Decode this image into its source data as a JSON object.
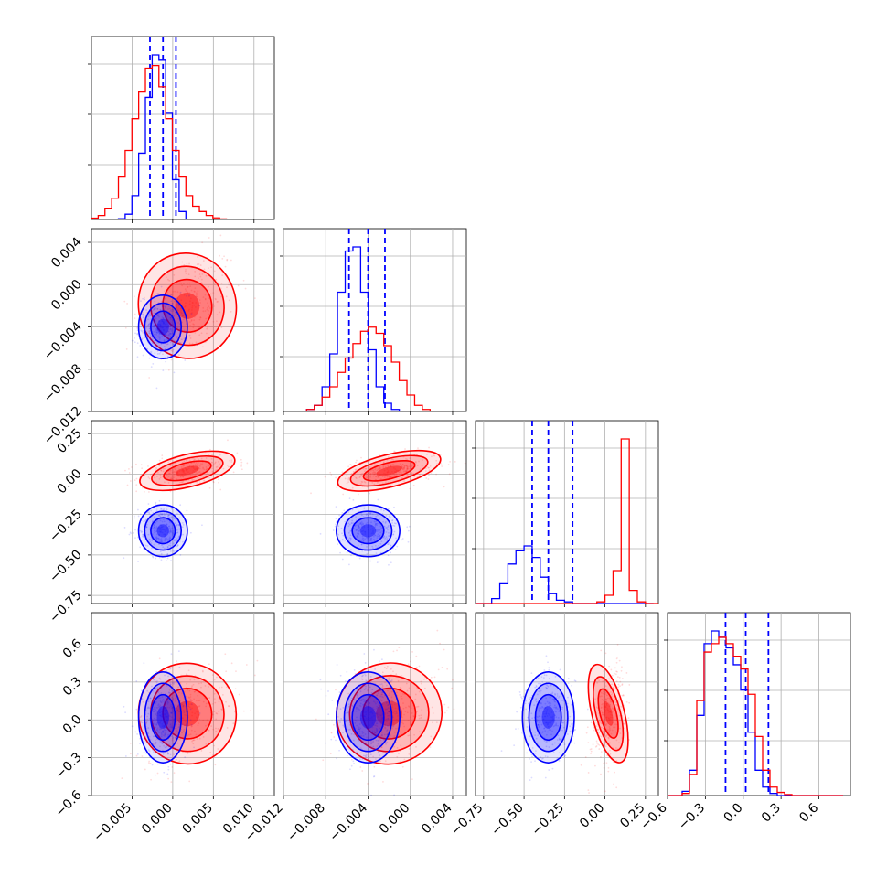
{
  "chart_data": {
    "type": "corner",
    "grid": true,
    "colors": {
      "blue": "#0000ff",
      "red": "#ff0000"
    },
    "variables": [
      {
        "ticks": [
          "−0.005",
          "0.000",
          "0.005",
          "0.010"
        ],
        "tick_values": [
          -0.005,
          0.0,
          0.005,
          0.01
        ],
        "range": [
          -0.01,
          0.0125
        ]
      },
      {
        "ticks": [
          "−0.012",
          "−0.008",
          "−0.004",
          "0.000",
          "0.004"
        ],
        "tick_values": [
          -0.012,
          -0.008,
          -0.004,
          0.0,
          0.004
        ],
        "range": [
          -0.012,
          0.0053
        ]
      },
      {
        "ticks": [
          "−0.75",
          "−0.50",
          "−0.25",
          "0.00",
          "0.25"
        ],
        "tick_values": [
          -0.75,
          -0.5,
          -0.25,
          0.0,
          0.25
        ],
        "range": [
          -0.8,
          0.33
        ]
      },
      {
        "ticks": [
          "−0.6",
          "−0.3",
          "0.0",
          "0.3",
          "0.6"
        ],
        "tick_values": [
          -0.6,
          -0.3,
          0.0,
          0.3,
          0.6
        ],
        "range": [
          -0.6,
          0.85
        ]
      }
    ],
    "row_ticks": [
      null,
      {
        "ticks": [
          "0.004",
          "0.000",
          "−0.004",
          "−0.008",
          "−0.012"
        ],
        "tick_values": [
          0.004,
          0.0,
          -0.004,
          -0.008,
          -0.012
        ]
      },
      {
        "ticks": [
          "0.25",
          "0.00",
          "−0.25",
          "−0.50",
          "−0.75"
        ],
        "tick_values": [
          0.25,
          0.0,
          -0.25,
          -0.5,
          -0.75
        ]
      },
      {
        "ticks": [
          "0.6",
          "0.3",
          "0.0",
          "−0.3",
          "−0.6"
        ],
        "tick_values": [
          0.6,
          0.3,
          0.0,
          -0.3,
          -0.6
        ]
      }
    ],
    "series": [
      {
        "color": "#0000ff",
        "means": [
          -0.0012,
          -0.004,
          -0.35,
          0.02
        ],
        "sds": [
          0.0015,
          0.0015,
          0.08,
          0.18
        ],
        "quantiles": [
          [
            -0.0028,
            -0.0012,
            0.0004
          ],
          [
            -0.0058,
            -0.004,
            -0.0024
          ],
          [
            -0.45,
            -0.35,
            -0.2
          ],
          [
            -0.14,
            0.02,
            0.2
          ]
        ],
        "hist": [
          {
            "start": -0.01,
            "width": 0.00083,
            "values": [
              0,
              0,
              0,
              0,
              0.3,
              2,
              9,
              25,
              46,
              62,
              60,
              40,
              15,
              3,
              0,
              0,
              0,
              0,
              0,
              0
            ]
          },
          {
            "start": -0.012,
            "width": 0.00073,
            "values": [
              0,
              0,
              0,
              1,
              3,
              12,
              28,
              58,
              78,
              80,
              58,
              30,
              12,
              4,
              1,
              0,
              0,
              0,
              0,
              0,
              0,
              0
            ]
          },
          {
            "start": -0.8,
            "width": 0.05,
            "values": [
              0,
              0,
              3,
              12,
              24,
              32,
              35,
              28,
              16,
              6,
              2,
              1,
              0,
              0,
              0,
              0,
              0,
              0,
              0,
              0,
              0,
              0
            ]
          },
          {
            "start": -0.6,
            "width": 0.058,
            "values": [
              0,
              0,
              2,
              12,
              38,
              72,
              78,
              75,
              70,
              62,
              50,
              30,
              12,
              4,
              1,
              0,
              0,
              0,
              0,
              0,
              0,
              0,
              0,
              0
            ]
          }
        ]
      },
      {
        "color": "#ff0000",
        "means": [
          0.0018,
          -0.002,
          0.02,
          0.05
        ],
        "sds": [
          0.003,
          0.0025,
          0.05,
          0.2
        ],
        "quantiles": [],
        "hist": [
          {
            "start": -0.01,
            "width": 0.00083,
            "values": [
              0.5,
              1.5,
              4,
              8,
              16,
              26,
              38,
              48,
              57,
              58,
              50,
              38,
              26,
              16,
              9,
              5,
              3,
              1.5,
              0.6,
              0.2,
              0,
              0,
              0,
              0,
              0,
              0,
              0
            ]
          },
          {
            "start": -0.012,
            "width": 0.00073,
            "values": [
              0,
              0,
              0,
              1,
              3,
              7,
              12,
              19,
              26,
              33,
              39,
              41,
              38,
              32,
              24,
              15,
              8,
              3,
              1,
              0,
              0,
              0,
              0
            ]
          },
          {
            "start": -0.8,
            "width": 0.05,
            "values": [
              0,
              0,
              0,
              0,
              0,
              0,
              0,
              0,
              0,
              0,
              0,
              0,
              0,
              0,
              0,
              1,
              5,
              20,
              100,
              8,
              1,
              0,
              0
            ]
          },
          {
            "start": -0.6,
            "width": 0.058,
            "values": [
              0,
              0,
              1,
              10,
              45,
              68,
              72,
              75,
              72,
              66,
              60,
              48,
              28,
              12,
              4,
              1.5,
              0.5,
              0,
              0,
              0,
              0,
              0,
              0,
              0
            ]
          }
        ]
      }
    ]
  }
}
